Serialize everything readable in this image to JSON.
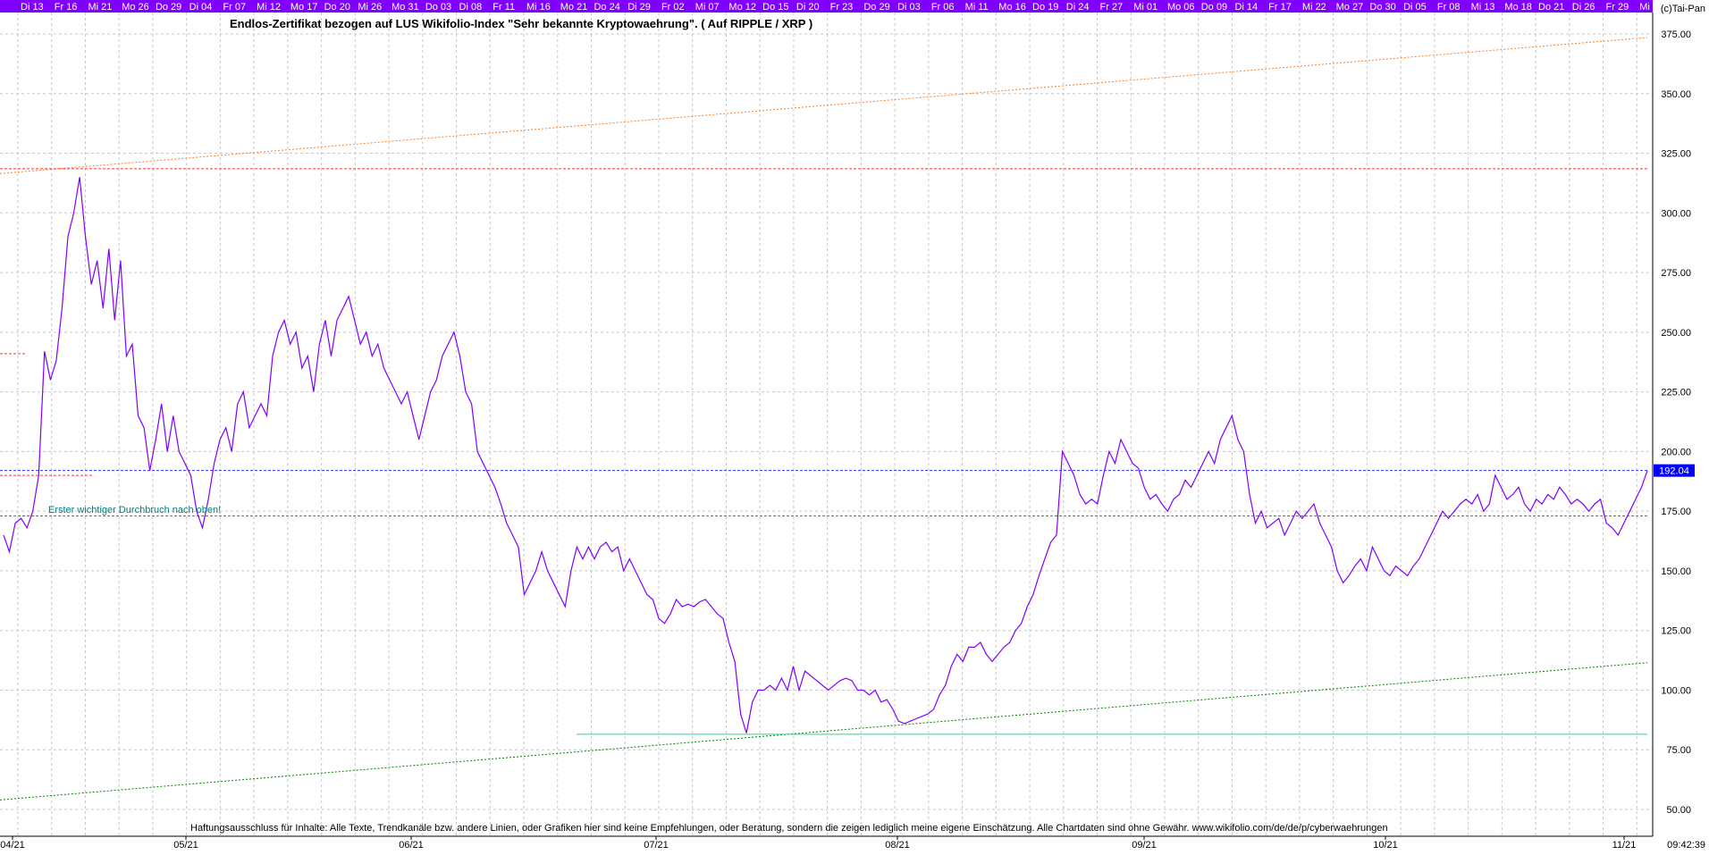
{
  "chart_data": {
    "type": "line",
    "title": "Endlos-Zertifikat bezogen auf LUS Wikifolio-Index \"Sehr bekannte Kryptowaehrung\". ( Auf RIPPLE / XRP )",
    "copyright": "(c)Tai-Pan",
    "annotation": "Erster wichtiger Durchbruch nach oben!",
    "disclaimer": "Haftungsausschluss für Inhalte: Alle Texte, Trendkanäle bzw. andere Linien, oder Grafiken hier sind keine Empfehlungen, oder Beratung, sondern die zeigen lediglich meine eigene Einschätzung. Alle Chartdaten sind ohne Gewähr.  www.wikifolio.com/de/de/p/cyberwaehrungen",
    "last_value_label": "192.04",
    "timestamp": "09:42:39",
    "ylim": [
      45,
      380
    ],
    "y_ticks": [
      "50.00",
      "75.00",
      "100.00",
      "125.00",
      "150.00",
      "175.00",
      "200.00",
      "225.00",
      "250.00",
      "275.00",
      "300.00",
      "325.00",
      "350.00",
      "375.00"
    ],
    "top_date_labels": [
      "Di 13",
      "Fr 16",
      "Mi 21",
      "Mo 26",
      "Do 29",
      "Di 04",
      "Fr 07",
      "Mi 12",
      "Mo 17",
      "Do 20",
      "Mi 26",
      "Mo 31",
      "Do 03",
      "Di 08",
      "Fr 11",
      "Mi 16",
      "Mo 21",
      "Do 24",
      "Di 29",
      "Fr 02",
      "Mi 07",
      "Mo 12",
      "Do 15",
      "Di 20",
      "Fr 23",
      "Do 29",
      "Di 03",
      "Fr 06",
      "Mi 11",
      "Mo 16",
      "Do 19",
      "Di 24",
      "Fr 27",
      "Mi 01",
      "Mo 06",
      "Do 09",
      "Di 14",
      "Fr 17",
      "Mi 22",
      "Mo 27",
      "Do 30",
      "Di 05",
      "Fr 08",
      "Mi 13",
      "Mo 18",
      "Do 21",
      "Di 26",
      "Fr 29",
      "Mi"
    ],
    "month_labels": [
      "04/21",
      "05/21",
      "06/21",
      "07/21",
      "08/21",
      "09/21",
      "10/21",
      "11/21"
    ],
    "series": [
      {
        "values": [
          165,
          158,
          170,
          172,
          168,
          175,
          190,
          242,
          230,
          238,
          260,
          290,
          300,
          315,
          290,
          270,
          280,
          260,
          285,
          255,
          280,
          240,
          245,
          215,
          210,
          192,
          205,
          220,
          200,
          215,
          200,
          195,
          190,
          175,
          168,
          180,
          195,
          205,
          210,
          200,
          220,
          225,
          210,
          215,
          220,
          215,
          240,
          250,
          255,
          245,
          250,
          235,
          240,
          225,
          245,
          255,
          240,
          255,
          260,
          265,
          255,
          245,
          250,
          240,
          245,
          235,
          230,
          225,
          220,
          225,
          215,
          205,
          215,
          225,
          230,
          240,
          245,
          250,
          240,
          225,
          220,
          200,
          195,
          190,
          185,
          178,
          170,
          165,
          160,
          140,
          145,
          150,
          158,
          150,
          145,
          140,
          135,
          150,
          160,
          155,
          160,
          155,
          160,
          162,
          158,
          160,
          150,
          155,
          150,
          145,
          140,
          138,
          130,
          128,
          132,
          138,
          135,
          136,
          135,
          137,
          138,
          135,
          132,
          130,
          120,
          112,
          90,
          82,
          95,
          100,
          100,
          102,
          100,
          105,
          100,
          110,
          100,
          108,
          106,
          104,
          102,
          100,
          102,
          104,
          105,
          104,
          100,
          100,
          98,
          100,
          95,
          96,
          92,
          87,
          86,
          87,
          88,
          89,
          90,
          92,
          98,
          102,
          110,
          115,
          112,
          118,
          118,
          120,
          115,
          112,
          115,
          118,
          120,
          125,
          128,
          135,
          140,
          148,
          155,
          162,
          165,
          200,
          195,
          190,
          182,
          178,
          180,
          178,
          190,
          200,
          195,
          205,
          200,
          195,
          193,
          185,
          180,
          182,
          178,
          175,
          180,
          182,
          188,
          185,
          190,
          195,
          200,
          195,
          205,
          210,
          215,
          205,
          200,
          182,
          170,
          175,
          168,
          170,
          172,
          165,
          170,
          175,
          172,
          175,
          178,
          170,
          165,
          160,
          150,
          145,
          148,
          152,
          155,
          150,
          160,
          155,
          150,
          148,
          152,
          150,
          148,
          152,
          155,
          160,
          165,
          170,
          175,
          172,
          175,
          178,
          180,
          178,
          182,
          175,
          178,
          190,
          185,
          180,
          182,
          185,
          178,
          175,
          180,
          178,
          182,
          180,
          185,
          182,
          178,
          180,
          178,
          175,
          178,
          180,
          170,
          168,
          165,
          170,
          175,
          180,
          185,
          192
        ]
      }
    ],
    "horizontal_lines": [
      {
        "y": 318.5,
        "color": "#ff3030",
        "style": "dotted"
      },
      {
        "y": 192.04,
        "color": "#3030ff",
        "style": "dotted"
      },
      {
        "y": 173,
        "color": "#ff3030",
        "style": "dotted"
      },
      {
        "y": 81.5,
        "color": "#22dd88",
        "style": "solid"
      }
    ],
    "colors": {
      "price": "#8000ff",
      "top_bar": "#8000ff",
      "grid": "#c8c8c8",
      "upper_trend": "#ff7f27",
      "lower_trend": "#008000",
      "annotation": "#008080",
      "value_box": "#0000ff"
    }
  }
}
